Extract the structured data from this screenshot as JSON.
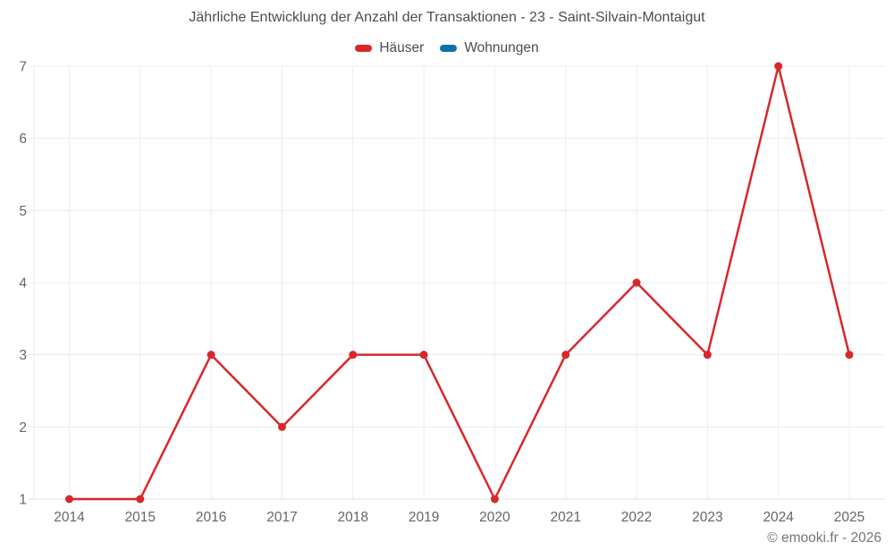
{
  "page": {
    "title": "Jährliche Entwicklung der Anzahl der Transaktionen - 23 - Saint-Silvain-Montaigut",
    "footer": "© emooki.fr - 2026"
  },
  "legend": {
    "items": [
      {
        "label": "Häuser",
        "color": "#d7282c"
      },
      {
        "label": "Wohnungen",
        "color": "#1071a7"
      }
    ]
  },
  "colors": {
    "series_red": "#d7282c",
    "series_blue": "#1071a7",
    "gridline": "#ececec",
    "axis_line": "#e0e0e0",
    "tick_text": "#666666",
    "title_text": "#4d4d4d",
    "footer_text": "#757575",
    "background": "#ffffff"
  },
  "chart_data": {
    "type": "line",
    "title": "Jährliche Entwicklung der Anzahl der Transaktionen - 23 - Saint-Silvain-Montaigut",
    "categories": [
      "2014",
      "2015",
      "2016",
      "2017",
      "2018",
      "2019",
      "2020",
      "2021",
      "2022",
      "2023",
      "2024",
      "2025"
    ],
    "series": [
      {
        "name": "Häuser",
        "color": "#d7282c",
        "values": [
          1,
          1,
          3,
          2,
          3,
          3,
          1,
          3,
          4,
          3,
          7,
          3
        ]
      },
      {
        "name": "Wohnungen",
        "color": "#1071a7",
        "values": []
      }
    ],
    "xlabel": "",
    "ylabel": "",
    "ylim": [
      1,
      7
    ],
    "yticks": [
      1,
      2,
      3,
      4,
      5,
      6,
      7
    ],
    "grid": true,
    "legend_position": "top",
    "marker": "circle"
  }
}
